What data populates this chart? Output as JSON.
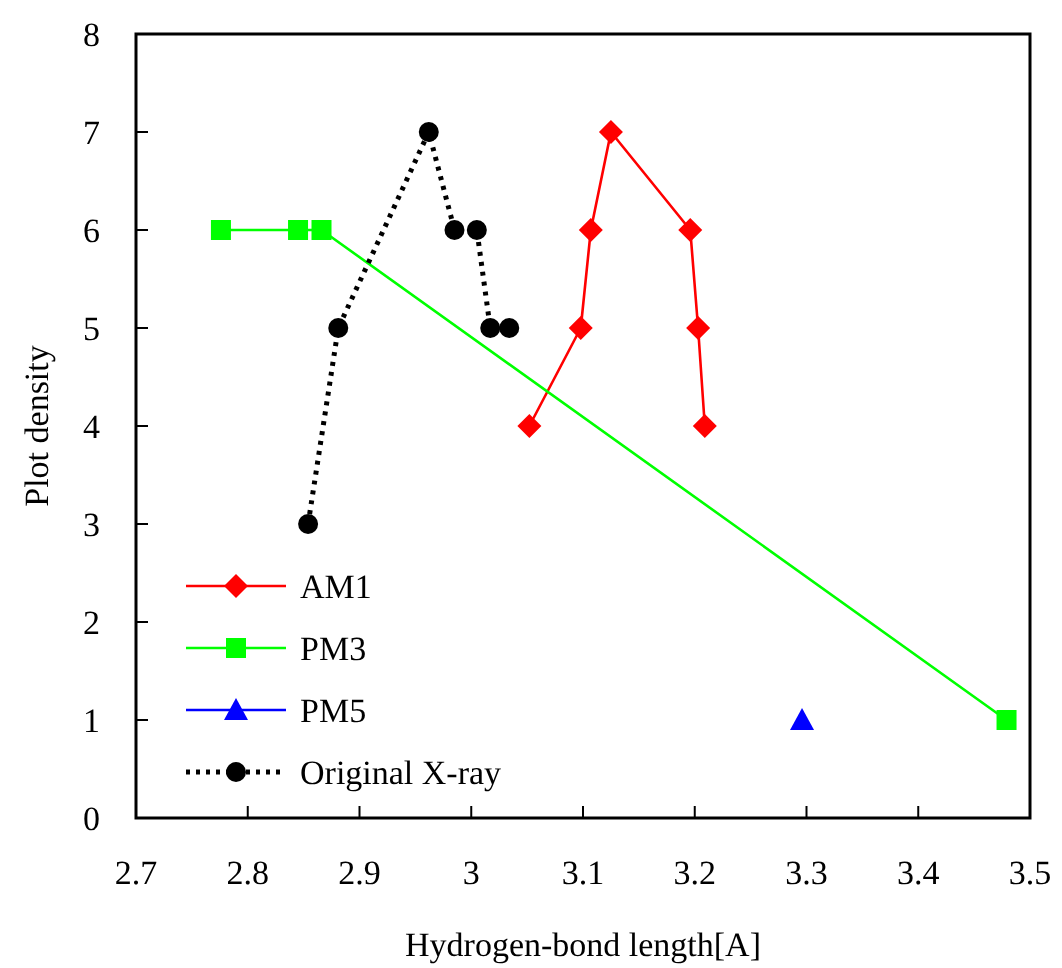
{
  "chart_data": {
    "type": "line",
    "xlabel": "Hydrogen-bond length[A]",
    "ylabel": "Plot density",
    "xlim": [
      2.7,
      3.5
    ],
    "xticks": [
      2.7,
      2.8,
      2.9,
      {
        "value": 3,
        "label": "3"
      },
      3.1,
      3.2,
      3.3,
      3.4,
      3.5
    ],
    "ylim": [
      0,
      8
    ],
    "yticks": [
      0,
      1,
      2,
      3,
      4,
      5,
      6,
      7,
      8
    ],
    "grid": false,
    "legend": "bottom left",
    "series": [
      {
        "name": "AM1",
        "color": "#ff0000",
        "marker": "diamond",
        "line_style": "solid",
        "x": [
          3.052,
          3.098,
          3.107,
          3.125,
          3.196,
          3.203,
          3.209
        ],
        "values": [
          4,
          5,
          6,
          7,
          6,
          5,
          4
        ]
      },
      {
        "name": "PM3",
        "color": "#00ff00",
        "marker": "square",
        "line_style": "solid",
        "x": [
          2.776,
          2.845,
          2.866,
          3.479
        ],
        "values": [
          6,
          6,
          6,
          1
        ]
      },
      {
        "name": "PM5",
        "color": "#0000ff",
        "marker": "triangle",
        "line_style": "none",
        "x": [
          3.296
        ],
        "values": [
          1
        ]
      },
      {
        "name": "Original X-ray",
        "color": "#000000",
        "marker": "circle",
        "line_style": "dotted",
        "x": [
          2.854,
          2.881,
          2.962,
          2.985,
          3.005,
          3.017,
          3.034
        ],
        "values": [
          3,
          5,
          7,
          6,
          6,
          5,
          5
        ]
      }
    ]
  }
}
